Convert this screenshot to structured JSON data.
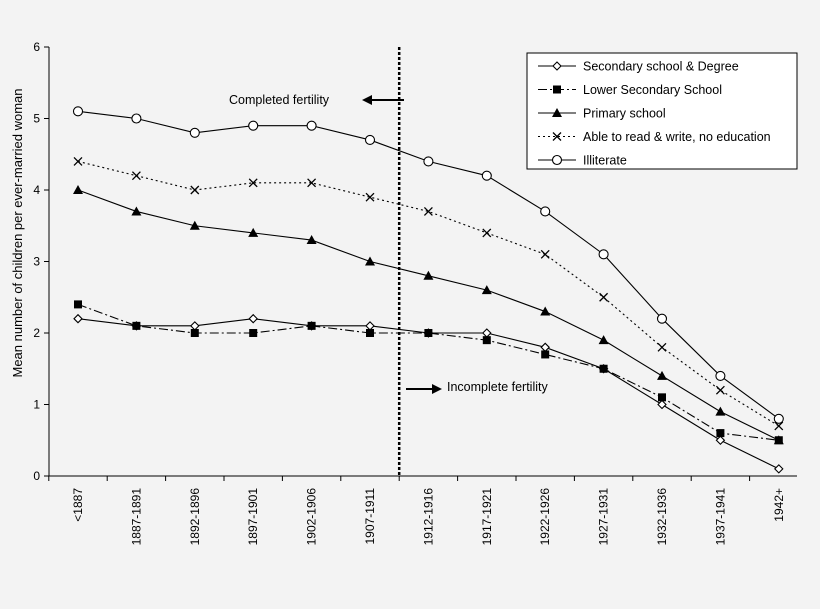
{
  "chart_data": {
    "type": "line",
    "title": "",
    "xlabel": "",
    "ylabel": "Mean number of children per ever-married woman",
    "ylim": [
      0,
      6
    ],
    "yticks": [
      0,
      1,
      2,
      3,
      4,
      5,
      6
    ],
    "grid": false,
    "legend_position": "top-right",
    "categories": [
      "<1887",
      "1887-1891",
      "1892-1896",
      "1897-1901",
      "1902-1906",
      "1907-1911",
      "1912-1916",
      "1917-1921",
      "1922-1926",
      "1927-1931",
      "1932-1936",
      "1937-1941",
      "1942+"
    ],
    "series": [
      {
        "name": "Secondary school & Degree",
        "marker": "diamond",
        "line": "solid",
        "values": [
          2.2,
          2.1,
          2.1,
          2.2,
          2.1,
          2.1,
          2.0,
          2.0,
          1.8,
          1.5,
          1.0,
          0.5,
          0.1
        ]
      },
      {
        "name": "Lower Secondary School",
        "marker": "square",
        "line": "dashdot",
        "values": [
          2.4,
          2.1,
          2.0,
          2.0,
          2.1,
          2.0,
          2.0,
          1.9,
          1.7,
          1.5,
          1.1,
          0.6,
          0.5
        ]
      },
      {
        "name": "Primary school",
        "marker": "triangle",
        "line": "solid",
        "values": [
          4.0,
          3.7,
          3.5,
          3.4,
          3.3,
          3.0,
          2.8,
          2.6,
          2.3,
          1.9,
          1.4,
          0.9,
          0.5
        ]
      },
      {
        "name": "Able to read & write, no education",
        "marker": "x",
        "line": "dotted",
        "values": [
          4.4,
          4.2,
          4.0,
          4.1,
          4.1,
          3.9,
          3.7,
          3.4,
          3.1,
          2.5,
          1.8,
          1.2,
          0.7
        ]
      },
      {
        "name": "Illiterate",
        "marker": "circle",
        "line": "solid",
        "values": [
          5.1,
          5.0,
          4.8,
          4.9,
          4.9,
          4.7,
          4.4,
          4.2,
          3.7,
          3.1,
          2.2,
          1.4,
          0.8
        ]
      }
    ],
    "annotations": [
      {
        "text": "Completed fertility",
        "arrow": "left"
      },
      {
        "text": "Incomplete fertility",
        "arrow": "right"
      }
    ],
    "divider_between": [
      "1907-1911",
      "1912-1916"
    ]
  }
}
